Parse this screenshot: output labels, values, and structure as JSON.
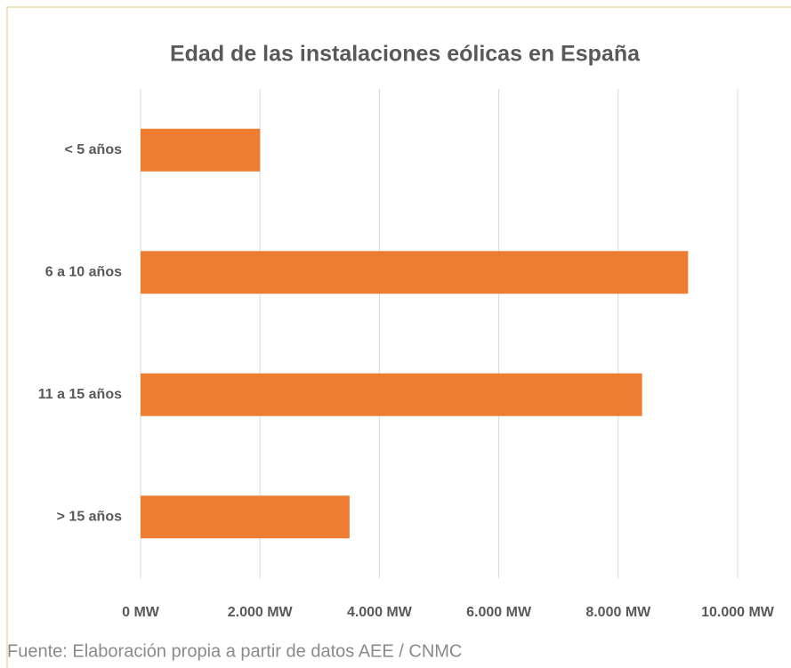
{
  "chart_data": {
    "type": "bar",
    "orientation": "horizontal",
    "title": "Edad de las instalaciones eólicas en España",
    "categories": [
      "< 5 años",
      "6 a 10 años",
      "11 a 15 años",
      "> 15 años"
    ],
    "values": [
      2000,
      9170,
      8400,
      3500
    ],
    "color": "#ed7d31",
    "xlim": [
      0,
      10000
    ],
    "xticks": [
      {
        "value": 0,
        "label": "0 MW"
      },
      {
        "value": 2000,
        "label": "2.000 MW"
      },
      {
        "value": 4000,
        "label": "4.000 MW"
      },
      {
        "value": 6000,
        "label": "6.000 MW"
      },
      {
        "value": 8000,
        "label": "8.000 MW"
      },
      {
        "value": 10000,
        "label": "10.000 MW"
      }
    ],
    "grid": true,
    "source": "Fuente: Elaboración propia a partir de datos AEE / CNMC"
  }
}
